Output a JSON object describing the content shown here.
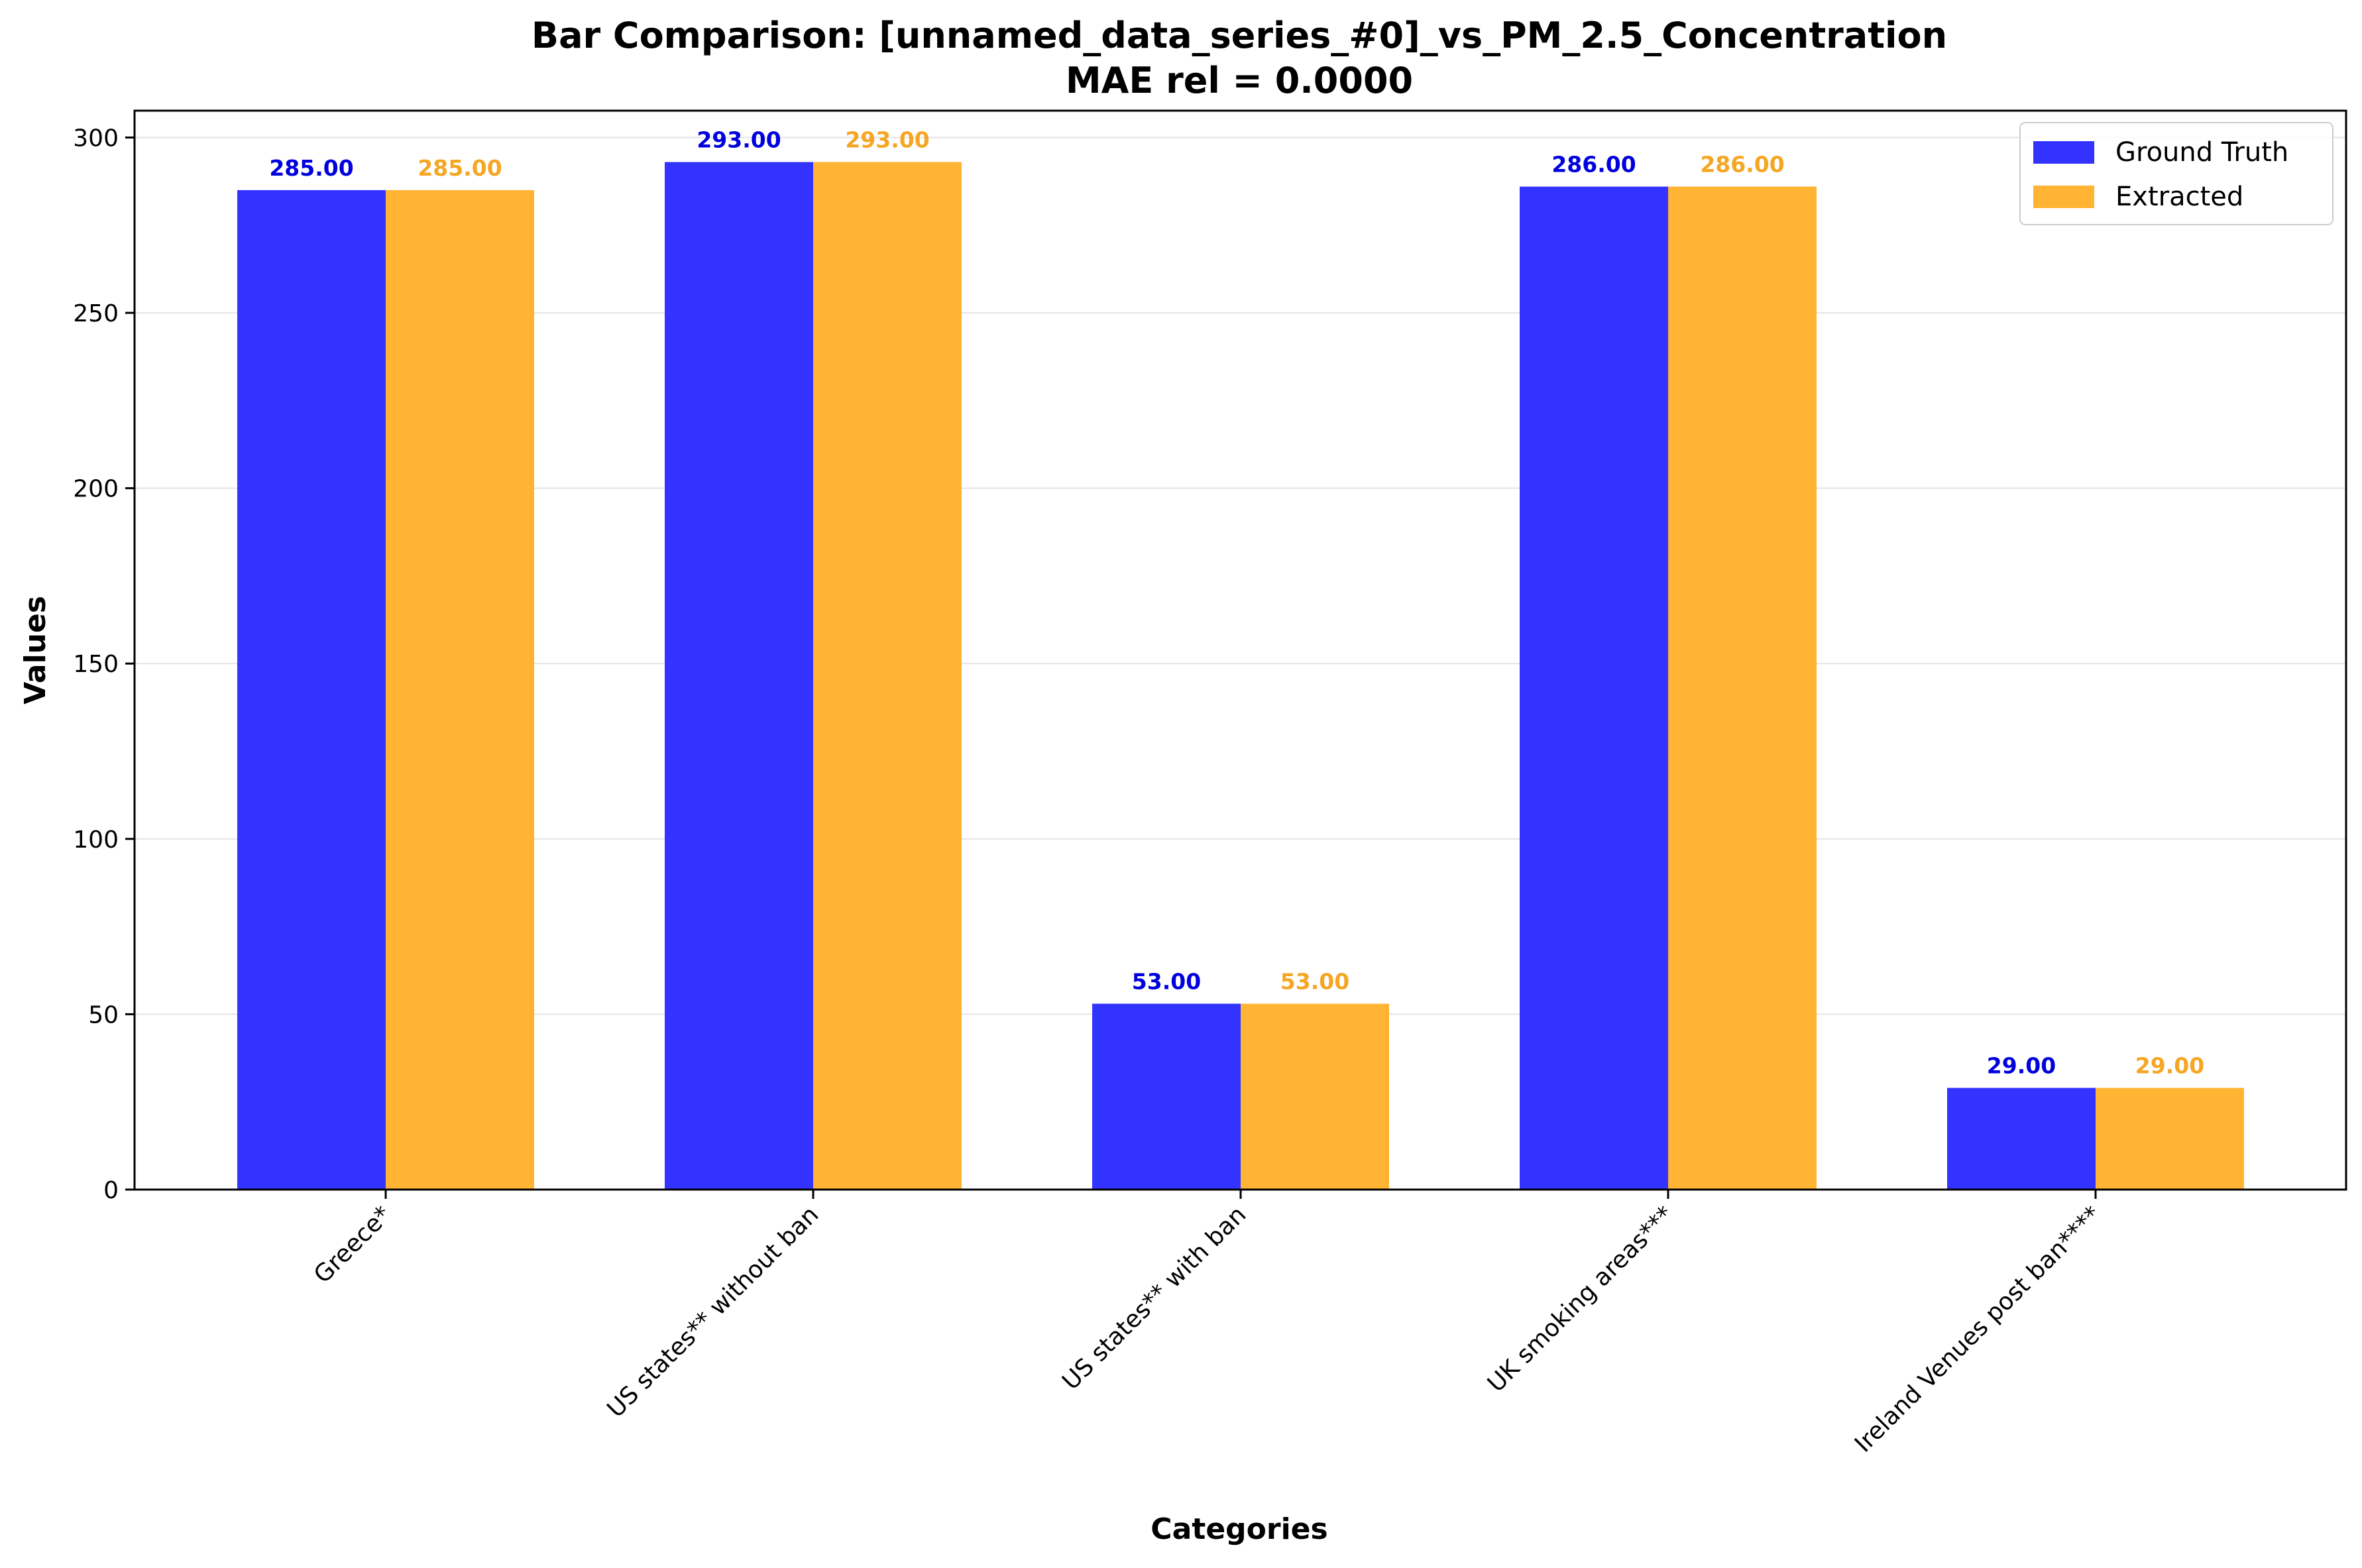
{
  "chart_data": {
    "type": "bar",
    "title": "Bar Comparison: [unnamed_data_series_#0]_vs_PM_2.5_Concentration",
    "subtitle": "MAE rel = 0.0000",
    "xlabel": "Categories",
    "ylabel": "Values",
    "categories": [
      "Greece*",
      "US states** without ban",
      "US states** with ban",
      "UK smoking areas***",
      "Ireland Venues post ban****"
    ],
    "series": [
      {
        "name": "Ground Truth",
        "color": "#3333ff",
        "label_color": "#0000dd",
        "values": [
          285,
          293,
          53,
          286,
          29
        ],
        "labels": [
          "285.00",
          "293.00",
          "53.00",
          "286.00",
          "29.00"
        ]
      },
      {
        "name": "Extracted",
        "color": "#ffb533",
        "label_color": "#f5a623",
        "values": [
          285,
          293,
          53,
          286,
          29
        ],
        "labels": [
          "285.00",
          "293.00",
          "53.00",
          "286.00",
          "29.00"
        ]
      }
    ],
    "ylim": [
      0,
      307.65
    ],
    "yticks": [
      0,
      50,
      100,
      150,
      200,
      250,
      300
    ],
    "grid": "horizontal",
    "legend_position": "top-right"
  }
}
